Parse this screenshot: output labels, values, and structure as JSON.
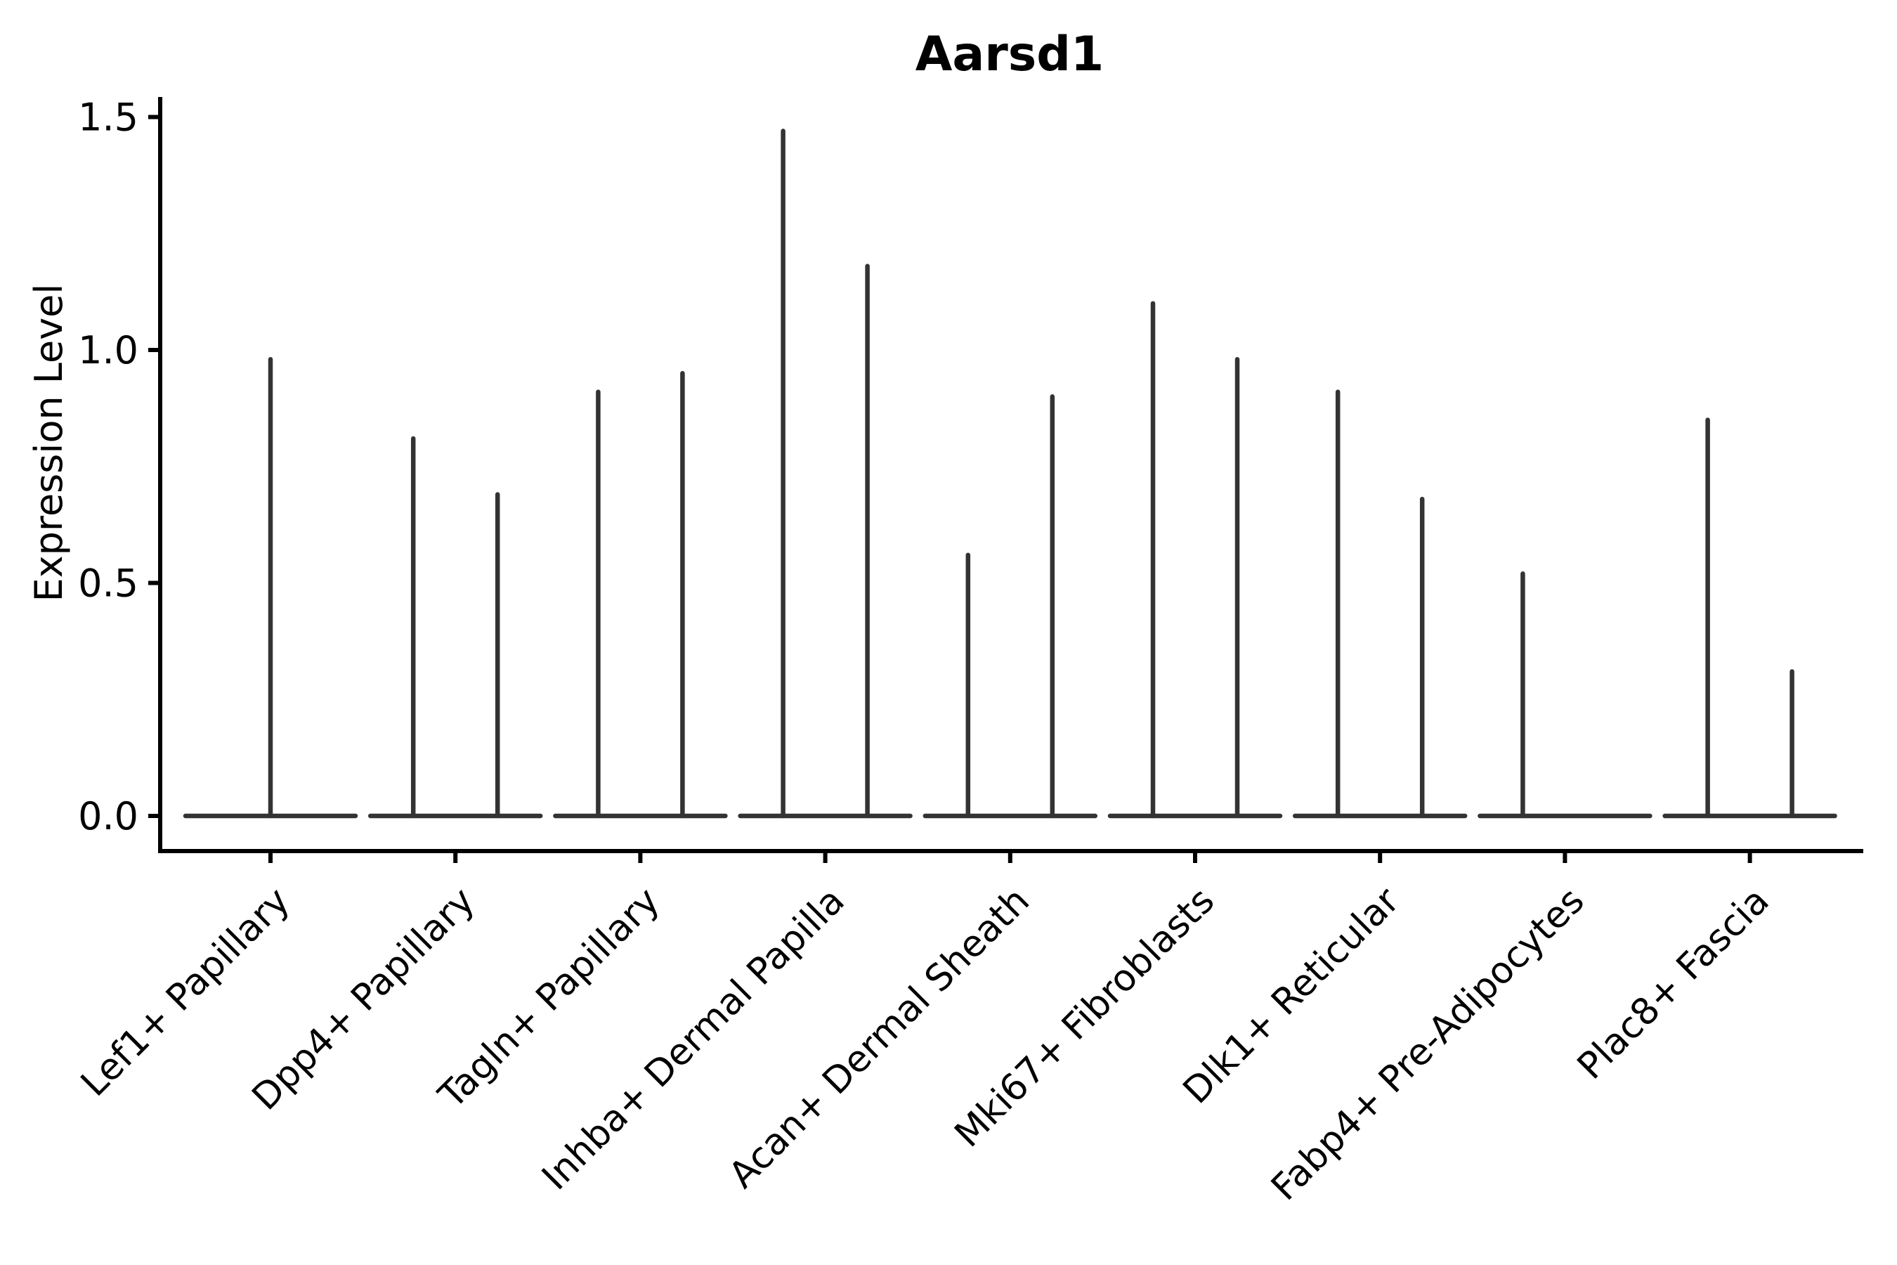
{
  "chart_data": {
    "type": "violin",
    "title": "Aarsd1",
    "ylabel": "Expression Level",
    "xlabel": "",
    "grid": false,
    "legend": "none",
    "ylim": [
      -0.08,
      1.55
    ],
    "yticks": [
      {
        "label": "0.0",
        "value": 0.0
      },
      {
        "label": "0.5",
        "value": 0.5
      },
      {
        "label": "1.0",
        "value": 1.0
      },
      {
        "label": "1.5",
        "value": 1.5
      }
    ],
    "colors": {
      "violin": "#333333",
      "axis": "#000000",
      "text": "#000000",
      "background": "#ffffff"
    },
    "categories": [
      {
        "label": "Lef1+ Papillary",
        "spikes": [
          {
            "position": "center",
            "max": 0.98
          }
        ]
      },
      {
        "label": "Dpp4+ Papillary",
        "spikes": [
          {
            "position": "left",
            "max": 0.81
          },
          {
            "position": "right",
            "max": 0.69
          }
        ]
      },
      {
        "label": "Tagln+ Papillary",
        "spikes": [
          {
            "position": "left",
            "max": 0.91
          },
          {
            "position": "right",
            "max": 0.95
          }
        ]
      },
      {
        "label": "Inhba+ Dermal Papilla",
        "spikes": [
          {
            "position": "left",
            "max": 1.47
          },
          {
            "position": "right",
            "max": 1.18
          }
        ]
      },
      {
        "label": "Acan+ Dermal Sheath",
        "spikes": [
          {
            "position": "left",
            "max": 0.56
          },
          {
            "position": "right",
            "max": 0.9
          }
        ]
      },
      {
        "label": "Mki67+ Fibroblasts",
        "spikes": [
          {
            "position": "left",
            "max": 1.1
          },
          {
            "position": "right",
            "max": 0.98
          }
        ]
      },
      {
        "label": "Dlk1+ Reticular",
        "spikes": [
          {
            "position": "left",
            "max": 0.91
          },
          {
            "position": "right",
            "max": 0.68
          }
        ]
      },
      {
        "label": "Fabp4+ Pre-Adipocytes",
        "spikes": [
          {
            "position": "left",
            "max": 0.52
          }
        ]
      },
      {
        "label": "Plac8+ Fascia",
        "spikes": [
          {
            "position": "left",
            "max": 0.85
          },
          {
            "position": "right",
            "max": 0.31
          }
        ]
      }
    ]
  }
}
